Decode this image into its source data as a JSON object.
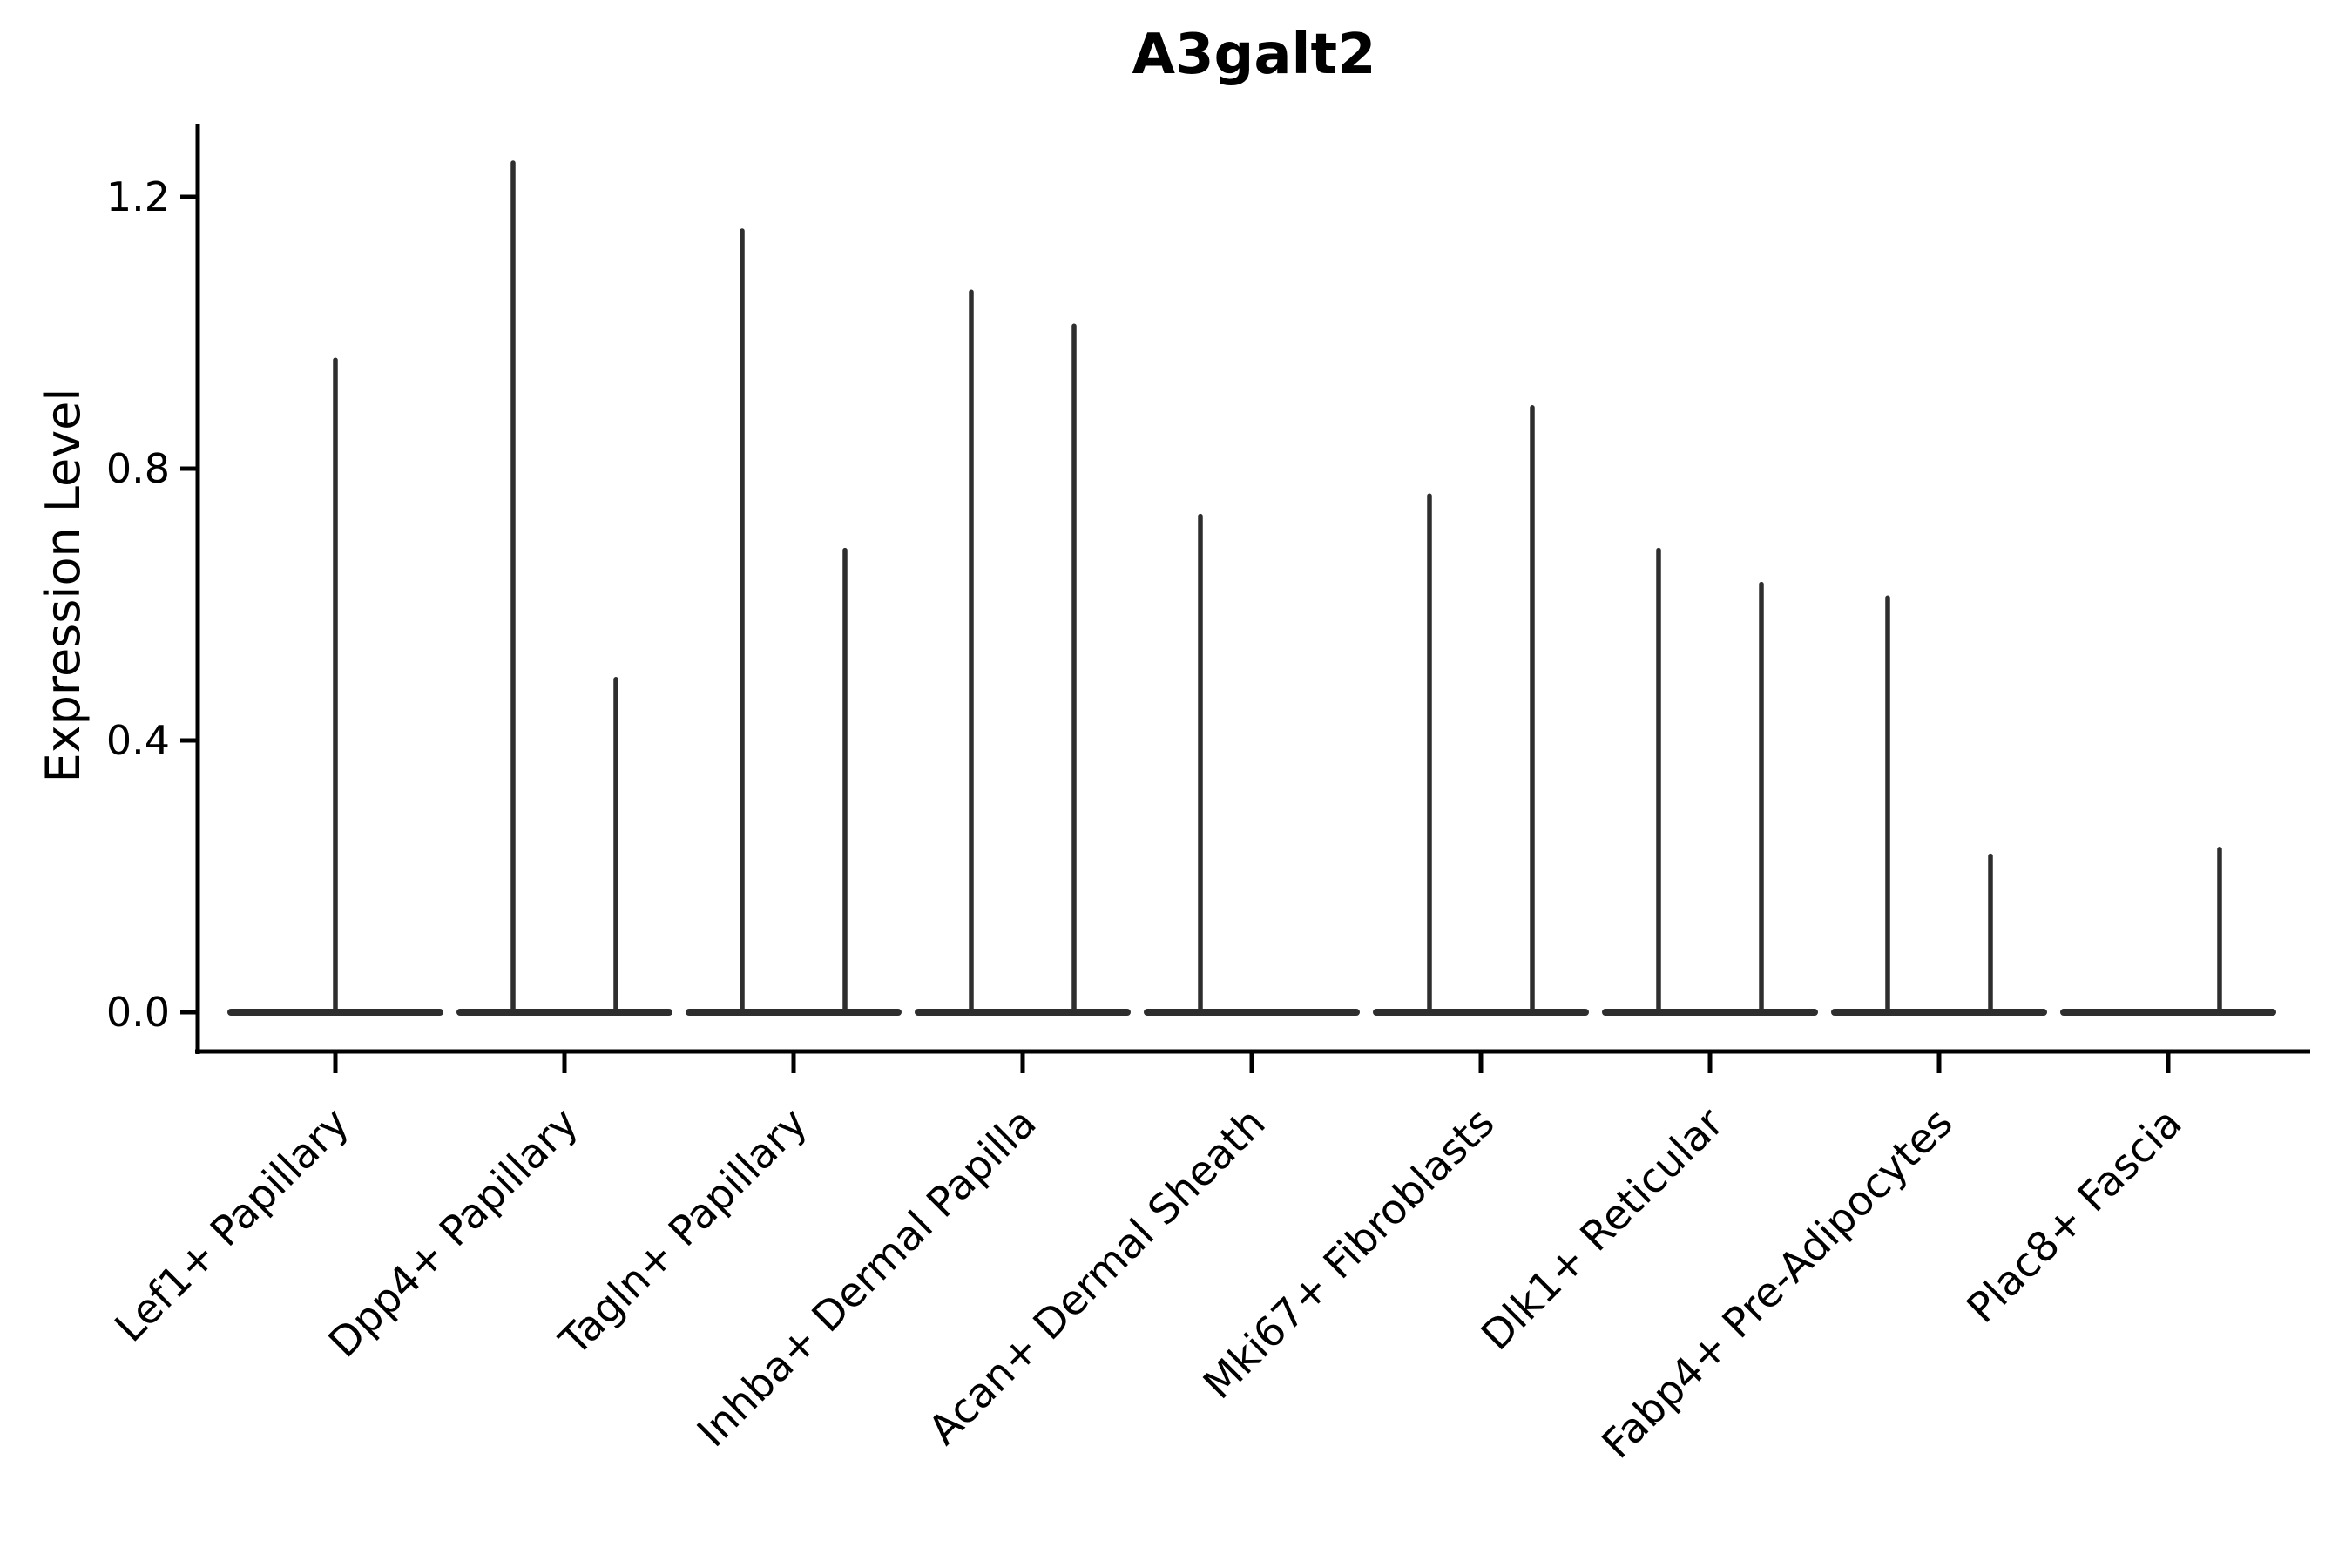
{
  "chart_data": {
    "type": "violin",
    "title": "A3galt2",
    "ylabel": "Expression Level",
    "xlabel": "",
    "yticks": [
      0.0,
      0.4,
      0.8,
      1.2
    ],
    "ylim": [
      0,
      1.31
    ],
    "grid": false,
    "legend": null,
    "violin_color": "#2e2e2e",
    "axis_color": "#000000",
    "background_color": "#ffffff",
    "categories": [
      "Lef1+ Papillary",
      "Dpp4+ Papillary",
      "Tagln+ Papillary",
      "Inhba+ Dermal Papilla",
      "Acan+ Dermal Sheath",
      "Mki67+ Fibroblasts",
      "Dlk1+ Reticular",
      "Fabp4+ Pre-Adipocytes",
      "Plac8+ Fascia"
    ],
    "violins": [
      {
        "category": "Lef1+ Papillary",
        "spikes": [
          {
            "offset": 0,
            "max": 0.96
          }
        ]
      },
      {
        "category": "Dpp4+ Papillary",
        "spikes": [
          {
            "offset": -1,
            "max": 1.25
          },
          {
            "offset": 1,
            "max": 0.49
          }
        ]
      },
      {
        "category": "Tagln+ Papillary",
        "spikes": [
          {
            "offset": -1,
            "max": 1.15
          },
          {
            "offset": 1,
            "max": 0.68
          }
        ]
      },
      {
        "category": "Inhba+ Dermal Papilla",
        "spikes": [
          {
            "offset": -1,
            "max": 1.06
          },
          {
            "offset": 1,
            "max": 1.01
          }
        ]
      },
      {
        "category": "Acan+ Dermal Sheath",
        "spikes": [
          {
            "offset": -1,
            "max": 0.73
          }
        ]
      },
      {
        "category": "Mki67+ Fibroblasts",
        "spikes": [
          {
            "offset": -1,
            "max": 0.76
          },
          {
            "offset": 1,
            "max": 0.89
          }
        ]
      },
      {
        "category": "Dlk1+ Reticular",
        "spikes": [
          {
            "offset": -1,
            "max": 0.68
          },
          {
            "offset": 1,
            "max": 0.63
          }
        ]
      },
      {
        "category": "Fabp4+ Pre-Adipocytes",
        "spikes": [
          {
            "offset": -1,
            "max": 0.61
          },
          {
            "offset": 1,
            "max": 0.23
          }
        ]
      },
      {
        "category": "Plac8+ Fascia",
        "spikes": [
          {
            "offset": 1,
            "max": 0.24
          }
        ]
      }
    ],
    "baseline_value": 0.0
  }
}
